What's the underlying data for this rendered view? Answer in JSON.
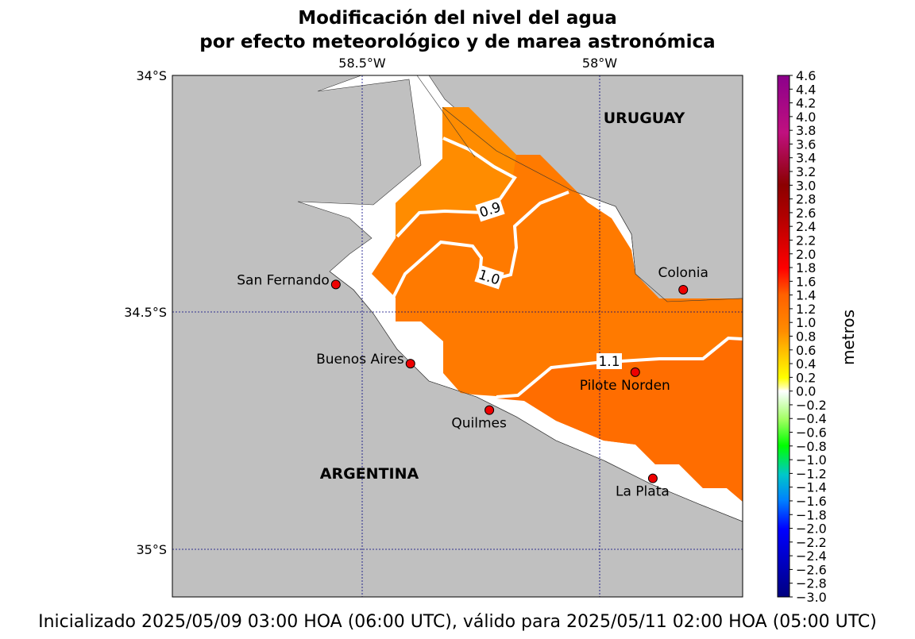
{
  "title": {
    "line1": "Modificación del nivel del agua",
    "line2": "por efecto meteorológico y de marea astronómica"
  },
  "footer": "Inicializado 2025/05/09 03:00 HOA (06:00 UTC), válido para 2025/05/11 02:00 HOA (05:00 UTC)",
  "map": {
    "lon_range": [
      -58.9,
      -57.7
    ],
    "lat_range": [
      -35.1,
      -34.0
    ],
    "lon_ticks": [
      {
        "value": -58.5,
        "label": "58.5°W"
      },
      {
        "value": -58.0,
        "label": "58°W"
      }
    ],
    "lat_ticks": [
      {
        "value": -34.0,
        "label": "34°S"
      },
      {
        "value": -34.5,
        "label": "34.5°S"
      },
      {
        "value": -35.0,
        "label": "35°S"
      }
    ],
    "gridlines": true,
    "land_color": "#c0c0c0",
    "water_color": "#ffffff",
    "countries": [
      {
        "name": "URUGUAY",
        "lon": -57.91,
        "lat": -34.09
      },
      {
        "name": "ARGENTINA",
        "lon": -58.58,
        "lat": -34.84
      }
    ],
    "stations": [
      {
        "name": "San Fernando",
        "lon": -58.556,
        "lat": -34.441,
        "label_pos": "left"
      },
      {
        "name": "Colonia",
        "lon": -57.825,
        "lat": -34.452,
        "label_pos": "above"
      },
      {
        "name": "Buenos Aires",
        "lon": -58.399,
        "lat": -34.608,
        "label_pos": "left"
      },
      {
        "name": "Pilote Norden",
        "lon": -57.926,
        "lat": -34.626,
        "label_pos": "below"
      },
      {
        "name": "Quilmes",
        "lon": -58.233,
        "lat": -34.706,
        "label_pos": "below"
      },
      {
        "name": "La Plata",
        "lon": -57.889,
        "lat": -34.85,
        "label_pos": "below"
      }
    ],
    "contours": [
      {
        "level": "0.9",
        "lon": -58.202,
        "lat": -34.284
      },
      {
        "level": "1.0",
        "lon": -58.232,
        "lat": -34.426
      },
      {
        "level": "1.1",
        "lon": -57.98,
        "lat": -34.602
      }
    ]
  },
  "colorbar": {
    "label": "metros",
    "min": -3.0,
    "max": 4.6,
    "step": 0.2,
    "ticks": [
      "4.6",
      "4.4",
      "4.2",
      "4.0",
      "3.8",
      "3.6",
      "3.4",
      "3.2",
      "3.0",
      "2.8",
      "2.6",
      "2.4",
      "2.2",
      "2.0",
      "1.8",
      "1.6",
      "1.4",
      "1.2",
      "1.0",
      "0.8",
      "0.6",
      "0.4",
      "0.2",
      "0.0",
      "−0.2",
      "−0.4",
      "−0.6",
      "−0.8",
      "−1.0",
      "−1.2",
      "−1.4",
      "−1.6",
      "−1.8",
      "−2.0",
      "−2.2",
      "−2.4",
      "−2.6",
      "−2.8",
      "−3.0"
    ],
    "colors": {
      "-3.0": "#00007f",
      "-2.0": "#0000ff",
      "-1.6": "#0080ff",
      "-1.2": "#00c8c8",
      "-0.8": "#00ff00",
      "-0.4": "#a0ff60",
      "0.0": "#ffffff",
      "0.2": "#ffff00",
      "0.6": "#ffc000",
      "0.9": "#ff8c00",
      "1.4": "#ff6000",
      "1.8": "#ff0000",
      "2.6": "#b00000",
      "3.0": "#8b0000",
      "3.8": "#c0107f",
      "4.6": "#8b008b"
    }
  }
}
